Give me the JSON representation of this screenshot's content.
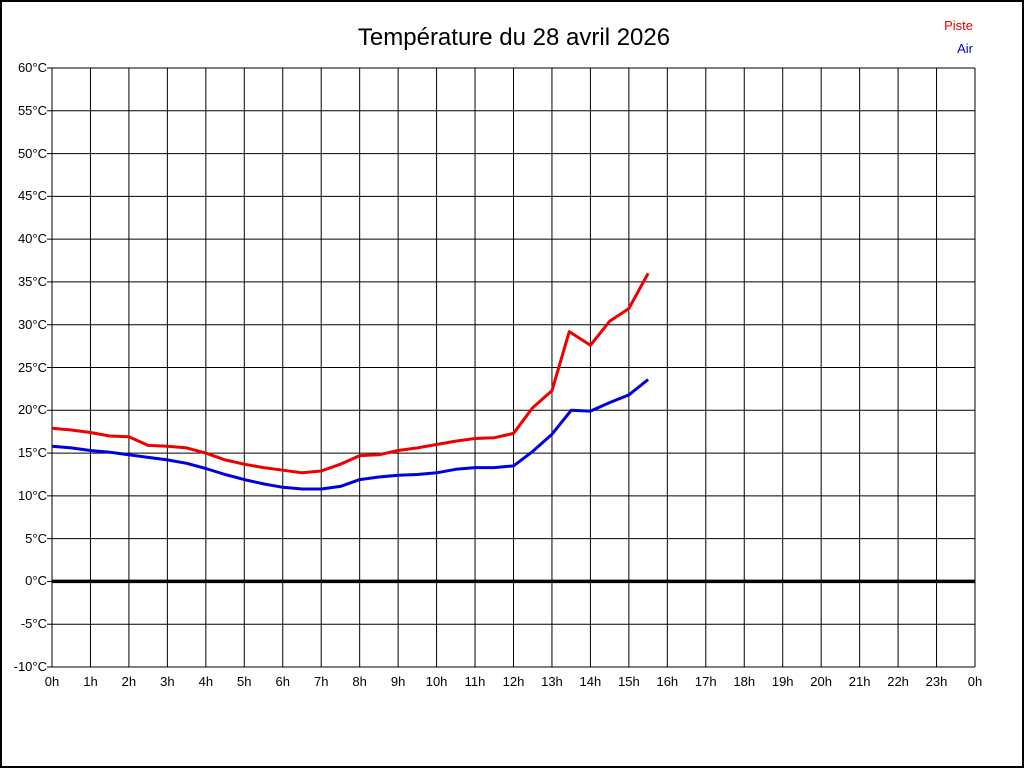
{
  "chart_data": {
    "type": "line",
    "title": "Température du 28 avril 2026",
    "xlabel": "",
    "ylabel": "",
    "grid": true,
    "x_axis": {
      "min": 0,
      "max": 24,
      "tick_step_hours": 1,
      "tick_labels": [
        "0h",
        "1h",
        "2h",
        "3h",
        "4h",
        "5h",
        "6h",
        "7h",
        "8h",
        "9h",
        "10h",
        "11h",
        "12h",
        "13h",
        "14h",
        "15h",
        "16h",
        "17h",
        "18h",
        "19h",
        "20h",
        "21h",
        "22h",
        "23h",
        "0h"
      ]
    },
    "y_axis": {
      "min": -10,
      "max": 60,
      "tick_step": 5,
      "unit": "°C",
      "tick_labels": [
        "60°C",
        "55°C",
        "50°C",
        "45°C",
        "40°C",
        "35°C",
        "30°C",
        "25°C",
        "20°C",
        "15°C",
        "10°C",
        "5°C",
        "0°C",
        "-5°C",
        "-10°C"
      ],
      "zero_line_bold": true
    },
    "legend": [
      {
        "label": "Piste",
        "color": "#ee0000"
      },
      {
        "label": "Air",
        "color": "#0000dd"
      }
    ],
    "series": [
      {
        "name": "Piste",
        "color": "#ee0000",
        "points": [
          [
            0,
            17.9
          ],
          [
            0.5,
            17.7
          ],
          [
            1,
            17.4
          ],
          [
            1.5,
            17.0
          ],
          [
            2,
            16.9
          ],
          [
            2.5,
            15.9
          ],
          [
            3,
            15.8
          ],
          [
            3.5,
            15.6
          ],
          [
            4,
            15.0
          ],
          [
            4.5,
            14.2
          ],
          [
            5,
            13.7
          ],
          [
            5.5,
            13.3
          ],
          [
            6,
            13.0
          ],
          [
            6.5,
            12.7
          ],
          [
            7,
            12.9
          ],
          [
            7.5,
            13.7
          ],
          [
            8,
            14.7
          ],
          [
            8.5,
            14.8
          ],
          [
            9,
            15.3
          ],
          [
            9.5,
            15.6
          ],
          [
            10,
            16.0
          ],
          [
            10.5,
            16.4
          ],
          [
            11,
            16.7
          ],
          [
            11.5,
            16.8
          ],
          [
            12,
            17.3
          ],
          [
            12.5,
            20.3
          ],
          [
            13,
            22.3
          ],
          [
            13.45,
            29.2
          ],
          [
            14,
            27.6
          ],
          [
            14.5,
            30.4
          ],
          [
            15,
            31.9
          ],
          [
            15.5,
            36.0
          ]
        ]
      },
      {
        "name": "Air",
        "color": "#0000dd",
        "points": [
          [
            0,
            15.8
          ],
          [
            0.5,
            15.6
          ],
          [
            1,
            15.3
          ],
          [
            1.5,
            15.1
          ],
          [
            2,
            14.8
          ],
          [
            2.5,
            14.5
          ],
          [
            3,
            14.2
          ],
          [
            3.5,
            13.8
          ],
          [
            4,
            13.2
          ],
          [
            4.5,
            12.5
          ],
          [
            5,
            11.9
          ],
          [
            5.5,
            11.4
          ],
          [
            6,
            11.0
          ],
          [
            6.5,
            10.8
          ],
          [
            7,
            10.8
          ],
          [
            7.5,
            11.1
          ],
          [
            8,
            11.9
          ],
          [
            8.5,
            12.2
          ],
          [
            9,
            12.4
          ],
          [
            9.5,
            12.5
          ],
          [
            10,
            12.7
          ],
          [
            10.5,
            13.1
          ],
          [
            11,
            13.3
          ],
          [
            11.5,
            13.3
          ],
          [
            12,
            13.5
          ],
          [
            12.5,
            15.2
          ],
          [
            13,
            17.2
          ],
          [
            13.5,
            20.0
          ],
          [
            14,
            19.9
          ],
          [
            14.5,
            20.9
          ],
          [
            15,
            21.8
          ],
          [
            15.5,
            23.6
          ]
        ]
      }
    ],
    "colors": {
      "grid": "#000000",
      "zero_line": "#000000",
      "background": "#ffffff",
      "border": "#000000"
    }
  }
}
